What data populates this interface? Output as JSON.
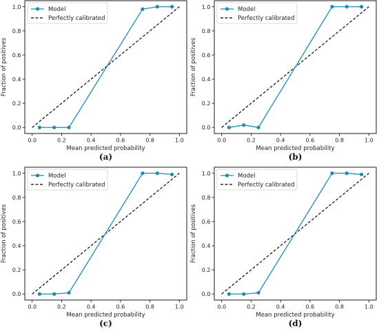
{
  "chart_data": [
    {
      "type": "line",
      "caption": "(a)",
      "xlabel": "Mean predicted probability",
      "ylabel": "Fraction of positives",
      "xlim": [
        -0.05,
        1.05
      ],
      "ylim": [
        -0.05,
        1.05
      ],
      "xticks": [
        "0.0",
        "0.2",
        "0.4",
        "0.6",
        "0.8",
        "1.0"
      ],
      "yticks": [
        "0.0",
        "0.2",
        "0.4",
        "0.6",
        "0.8",
        "1.0"
      ],
      "grid": false,
      "legend": "top-left",
      "series": [
        {
          "name": "Model",
          "color": "#1f88b4",
          "x": [
            0.05,
            0.15,
            0.25,
            0.75,
            0.85,
            0.95
          ],
          "y": [
            0.0,
            0.0,
            0.0,
            0.98,
            1.0,
            1.0
          ]
        },
        {
          "name": "Perfectly calibrated",
          "color": "#000000",
          "style": "dashed",
          "x": [
            0.0,
            1.0
          ],
          "y": [
            0.0,
            1.0
          ]
        }
      ]
    },
    {
      "type": "line",
      "caption": "(b)",
      "xlabel": "Mean predicted probability",
      "ylabel": "Fraction of positives",
      "xlim": [
        -0.05,
        1.05
      ],
      "ylim": [
        -0.05,
        1.05
      ],
      "xticks": [
        "0.0",
        "0.2",
        "0.4",
        "0.6",
        "0.8",
        "1.0"
      ],
      "yticks": [
        "0.0",
        "0.2",
        "0.4",
        "0.6",
        "0.8",
        "1.0"
      ],
      "grid": false,
      "legend": "top-left",
      "series": [
        {
          "name": "Model",
          "color": "#1f88b4",
          "x": [
            0.05,
            0.15,
            0.25,
            0.75,
            0.85,
            0.95
          ],
          "y": [
            0.0,
            0.02,
            0.0,
            1.0,
            1.0,
            1.0
          ]
        },
        {
          "name": "Perfectly calibrated",
          "color": "#000000",
          "style": "dashed",
          "x": [
            0.0,
            1.0
          ],
          "y": [
            0.0,
            1.0
          ]
        }
      ]
    },
    {
      "type": "line",
      "caption": "(c)",
      "xlabel": "Mean predicted probability",
      "ylabel": "Fraction of positives",
      "xlim": [
        -0.05,
        1.05
      ],
      "ylim": [
        -0.05,
        1.05
      ],
      "xticks": [
        "0.0",
        "0.2",
        "0.4",
        "0.6",
        "0.8",
        "1.0"
      ],
      "yticks": [
        "0.0",
        "0.2",
        "0.4",
        "0.6",
        "0.8",
        "1.0"
      ],
      "grid": false,
      "legend": "top-left",
      "series": [
        {
          "name": "Model",
          "color": "#1f88b4",
          "x": [
            0.05,
            0.15,
            0.25,
            0.75,
            0.85,
            0.95
          ],
          "y": [
            0.0,
            0.0,
            0.01,
            1.0,
            1.0,
            0.99
          ]
        },
        {
          "name": "Perfectly calibrated",
          "color": "#000000",
          "style": "dashed",
          "x": [
            0.0,
            1.0
          ],
          "y": [
            0.0,
            1.0
          ]
        }
      ]
    },
    {
      "type": "line",
      "caption": "(d)",
      "xlabel": "Mean predicted probability",
      "ylabel": "Fraction of positives",
      "xlim": [
        -0.05,
        1.05
      ],
      "ylim": [
        -0.05,
        1.05
      ],
      "xticks": [
        "0.0",
        "0.2",
        "0.4",
        "0.6",
        "0.8",
        "1.0"
      ],
      "yticks": [
        "0.0",
        "0.2",
        "0.4",
        "0.6",
        "0.8",
        "1.0"
      ],
      "grid": false,
      "legend": "top-left",
      "series": [
        {
          "name": "Model",
          "color": "#1f88b4",
          "x": [
            0.05,
            0.15,
            0.25,
            0.75,
            0.85,
            0.95
          ],
          "y": [
            0.0,
            0.0,
            0.01,
            1.0,
            1.0,
            0.99
          ]
        },
        {
          "name": "Perfectly calibrated",
          "color": "#000000",
          "style": "dashed",
          "x": [
            0.0,
            1.0
          ],
          "y": [
            0.0,
            1.0
          ]
        }
      ]
    }
  ]
}
